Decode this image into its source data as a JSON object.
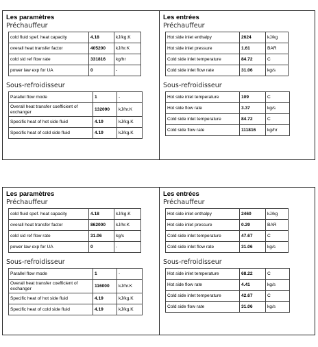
{
  "panels": [
    {
      "parameters": {
        "title": "Les paramètres",
        "preheater": {
          "title": "Préchauffeur",
          "rows": [
            [
              "cold fluid spef. heat capacity",
              "4.18",
              "kJ/kg.K"
            ],
            [
              "overall heat transfer factor",
              "405200",
              "kJ/hr.K"
            ],
            [
              "cold sid ref flow rate",
              "331816",
              "kg/hr"
            ],
            [
              "power law exp for UA",
              "0",
              "-"
            ]
          ]
        },
        "subcooler": {
          "title": "Sous-refroidisseur",
          "rows": [
            [
              "Parallel flow mode",
              "1",
              "-"
            ],
            [
              "Overall heat transfer coefficient of exchanger",
              "132090",
              "kJ/hr.K"
            ],
            [
              "Specific heat of hot side fluid",
              "4.19",
              "kJ/kg.K"
            ],
            [
              "Specific heat of cold side fluid",
              "4.19",
              "kJ/kg.K"
            ]
          ]
        }
      },
      "inputs": {
        "title": "Les entrées",
        "preheater": {
          "title": "Préchauffeur",
          "rows": [
            [
              "Hot side inlet enthalpy",
              "2624",
              "kJ/kg"
            ],
            [
              "Hot side inlet pressure",
              "1.61",
              "BAR"
            ],
            [
              "Cold side inlet temperature",
              "84.72",
              "C"
            ],
            [
              "Cold side inlet flow rate",
              "31.06",
              "kg/s"
            ]
          ]
        },
        "subcooler": {
          "title": "Sous-refroidisseur",
          "rows": [
            [
              "Hot side inlet temperature",
              "109",
              "C"
            ],
            [
              "Hot side flow rate",
              "3.37",
              "kg/s"
            ],
            [
              "Cold side inlet temperature",
              "84.72",
              "C"
            ],
            [
              "Cold side flow rate",
              "111816",
              "kg/hr"
            ]
          ]
        }
      }
    },
    {
      "parameters": {
        "title": "Les paramètres",
        "preheater": {
          "title": "Préchauffeur",
          "rows": [
            [
              "cold fluid spef. heat capacity",
              "4.18",
              "kJ/kg.K"
            ],
            [
              "overall heat transfer factor",
              "862000",
              "kJ/hr.K"
            ],
            [
              "cold sid ref flow rate",
              "31.06",
              "kg/s"
            ],
            [
              "power law exp for UA",
              "0",
              "-"
            ]
          ]
        },
        "subcooler": {
          "title": "Sous-refroidisseur",
          "rows": [
            [
              "Parallel flow mode",
              "1",
              "-"
            ],
            [
              "Overall heat transfer coefficient of exchanger",
              "116000",
              "kJ/hr.K"
            ],
            [
              "Specific heat of hot side fluid",
              "4.19",
              "kJ/kg.K"
            ],
            [
              "Specific heat of cold side fluid",
              "4.19",
              "kJ/kg.K"
            ]
          ]
        }
      },
      "inputs": {
        "title": "Les entrées",
        "preheater": {
          "title": "Préchauffeur",
          "rows": [
            [
              "Hot side inlet enthalpy",
              "2460",
              "kJ/kg"
            ],
            [
              "Hot side inlet pressure",
              "0.29",
              "BAR"
            ],
            [
              "Cold side inlet temperature",
              "47.67",
              "C"
            ],
            [
              "Cold side inlet flow rate",
              "31.06",
              "kg/s"
            ]
          ]
        },
        "subcooler": {
          "title": "Sous-refroidisseur",
          "rows": [
            [
              "Hot side inlet temperature",
              "68.22",
              "C"
            ],
            [
              "Hot side flow rate",
              "4.41",
              "kg/s"
            ],
            [
              "Cold side inlet temperature",
              "42.67",
              "C"
            ],
            [
              "Cold side flow rate",
              "31.06",
              "kg/s"
            ]
          ]
        }
      }
    }
  ]
}
